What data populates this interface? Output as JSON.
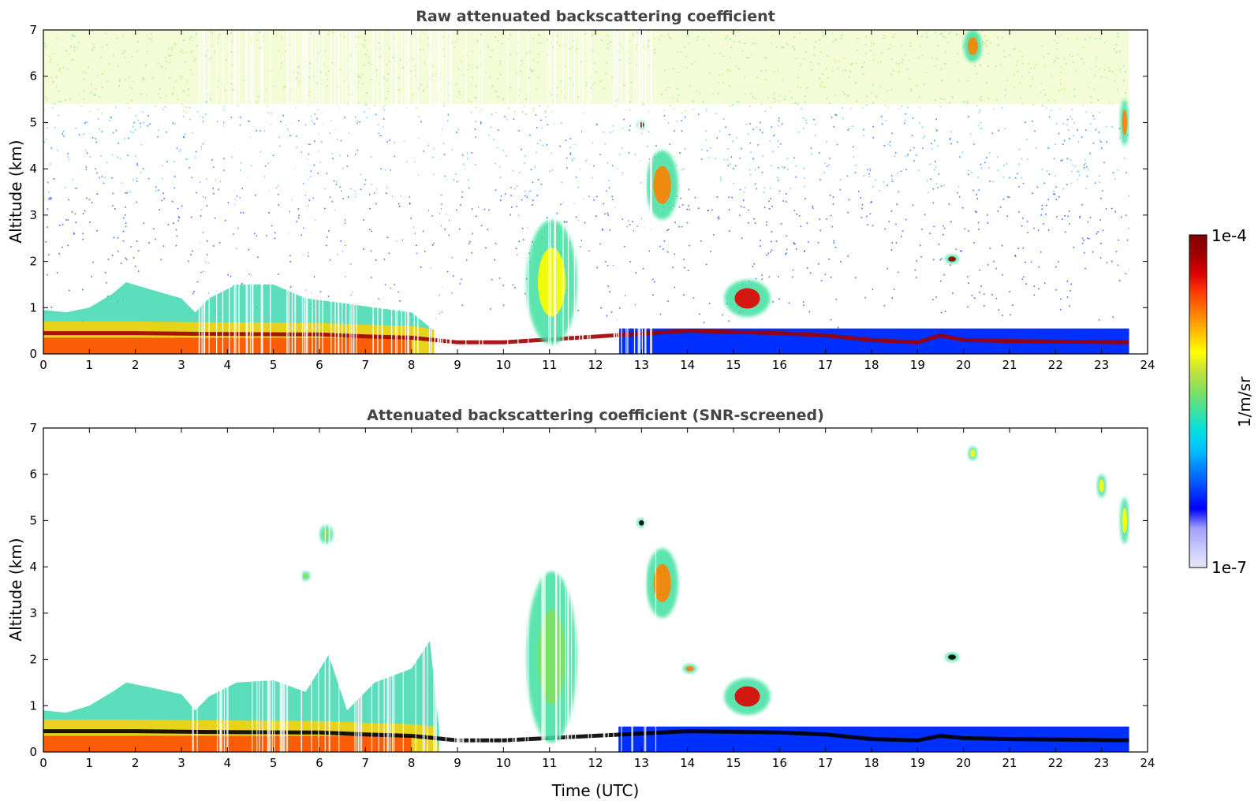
{
  "chart_data": [
    {
      "type": "heatmap",
      "title": "Raw attenuated backscattering coefficient",
      "xlabel": "",
      "ylabel": "Altitude (km)",
      "xlim": [
        0,
        24
      ],
      "ylim": [
        0,
        7
      ],
      "x_ticks": [
        "0",
        "1",
        "2",
        "3",
        "4",
        "5",
        "6",
        "7",
        "8",
        "9",
        "10",
        "11",
        "12",
        "13",
        "14",
        "15",
        "16",
        "17",
        "18",
        "19",
        "20",
        "21",
        "22",
        "23",
        "24"
      ],
      "y_ticks": [
        "0",
        "1",
        "2",
        "3",
        "4",
        "5",
        "6",
        "7"
      ],
      "data_end_hour": 23.6,
      "features": {
        "boundary_layer_top_km": [
          [
            0,
            0.95
          ],
          [
            0.5,
            0.9
          ],
          [
            1,
            1.0
          ],
          [
            1.5,
            1.3
          ],
          [
            1.8,
            1.55
          ],
          [
            2.3,
            1.4
          ],
          [
            3,
            1.2
          ],
          [
            3.3,
            0.9
          ],
          [
            3.6,
            1.2
          ],
          [
            4.2,
            1.5
          ],
          [
            5,
            1.5
          ],
          [
            5.7,
            1.2
          ],
          [
            6.5,
            1.1
          ],
          [
            7.2,
            1.0
          ],
          [
            8,
            0.9
          ],
          [
            8.5,
            0.5
          ]
        ],
        "strong_layer_km": [
          [
            0,
            0.45
          ],
          [
            2,
            0.45
          ],
          [
            4,
            0.43
          ],
          [
            6,
            0.42
          ],
          [
            7,
            0.38
          ],
          [
            8,
            0.35
          ],
          [
            9,
            0.25
          ],
          [
            10,
            0.25
          ],
          [
            14,
            0.5
          ],
          [
            16,
            0.45
          ],
          [
            17,
            0.4
          ],
          [
            18,
            0.3
          ],
          [
            19,
            0.25
          ],
          [
            19.5,
            0.4
          ],
          [
            20,
            0.3
          ],
          [
            21,
            0.28
          ],
          [
            23.6,
            0.25
          ]
        ],
        "clouds": [
          {
            "t0": 13.1,
            "t1": 13.8,
            "z0": 2.9,
            "z1": 4.4,
            "peak": "orange"
          },
          {
            "t0": 12.9,
            "t1": 13.1,
            "z0": 4.85,
            "z1": 5.05,
            "peak": "darkred"
          },
          {
            "t0": 14.8,
            "t1": 15.8,
            "z0": 0.8,
            "z1": 1.6,
            "peak": "red"
          },
          {
            "t0": 19.6,
            "t1": 19.9,
            "z0": 1.95,
            "z1": 2.15,
            "peak": "darkred"
          },
          {
            "t0": 23.4,
            "t1": 23.6,
            "z0": 4.5,
            "z1": 5.5,
            "peak": "orange"
          },
          {
            "t0": 20,
            "t1": 20.4,
            "z0": 6.3,
            "z1": 7,
            "peak": "orange"
          },
          {
            "t0": 10.5,
            "t1": 11.6,
            "z0": 0.2,
            "z1": 2.9,
            "peak": "yellow"
          }
        ]
      }
    },
    {
      "type": "heatmap",
      "title": "Attenuated backscattering coefficient (SNR-screened)",
      "xlabel": "Time (UTC)",
      "ylabel": "Altitude (km)",
      "xlim": [
        0,
        24
      ],
      "ylim": [
        0,
        7
      ],
      "x_ticks": [
        "0",
        "1",
        "2",
        "3",
        "4",
        "5",
        "6",
        "7",
        "8",
        "9",
        "10",
        "11",
        "12",
        "13",
        "14",
        "15",
        "16",
        "17",
        "18",
        "19",
        "20",
        "21",
        "22",
        "23",
        "24"
      ],
      "y_ticks": [
        "0",
        "1",
        "2",
        "3",
        "4",
        "5",
        "6",
        "7"
      ],
      "data_end_hour": 23.6,
      "features": {
        "boundary_layer_top_km": [
          [
            0,
            0.9
          ],
          [
            0.5,
            0.85
          ],
          [
            1,
            1.0
          ],
          [
            1.5,
            1.3
          ],
          [
            1.8,
            1.5
          ],
          [
            2.3,
            1.4
          ],
          [
            3,
            1.25
          ],
          [
            3.3,
            0.9
          ],
          [
            3.6,
            1.2
          ],
          [
            4.2,
            1.5
          ],
          [
            5,
            1.55
          ],
          [
            5.7,
            1.3
          ],
          [
            6.2,
            2.1
          ],
          [
            6.6,
            0.9
          ],
          [
            7.2,
            1.5
          ],
          [
            8,
            1.8
          ],
          [
            8.4,
            2.4
          ],
          [
            8.6,
            0.5
          ]
        ],
        "strong_layer_km": [
          [
            0,
            0.45
          ],
          [
            2,
            0.45
          ],
          [
            4,
            0.43
          ],
          [
            6,
            0.42
          ],
          [
            7,
            0.38
          ],
          [
            8,
            0.35
          ],
          [
            9,
            0.25
          ],
          [
            10,
            0.25
          ],
          [
            14,
            0.45
          ],
          [
            16,
            0.42
          ],
          [
            17,
            0.38
          ],
          [
            18,
            0.28
          ],
          [
            19,
            0.25
          ],
          [
            19.5,
            0.35
          ],
          [
            20,
            0.3
          ],
          [
            21,
            0.28
          ],
          [
            23.6,
            0.25
          ]
        ],
        "clouds": [
          {
            "t0": 13.1,
            "t1": 13.8,
            "z0": 2.9,
            "z1": 4.4,
            "peak": "orange"
          },
          {
            "t0": 12.9,
            "t1": 13.1,
            "z0": 4.85,
            "z1": 5.05,
            "peak": "black"
          },
          {
            "t0": 14.8,
            "t1": 15.8,
            "z0": 0.8,
            "z1": 1.6,
            "peak": "red"
          },
          {
            "t0": 19.6,
            "t1": 19.9,
            "z0": 1.95,
            "z1": 2.15,
            "peak": "black"
          },
          {
            "t0": 23.4,
            "t1": 23.6,
            "z0": 4.5,
            "z1": 5.5,
            "peak": "yellow"
          },
          {
            "t0": 20.1,
            "t1": 20.3,
            "z0": 6.3,
            "z1": 6.6,
            "peak": "yellow"
          },
          {
            "t0": 22.9,
            "t1": 23.1,
            "z0": 5.5,
            "z1": 6.0,
            "peak": "yellow"
          },
          {
            "t0": 10.5,
            "t1": 11.6,
            "z0": 0.2,
            "z1": 3.9,
            "peak": "green"
          },
          {
            "t0": 13.9,
            "t1": 14.2,
            "z0": 1.7,
            "z1": 1.9,
            "peak": "orange"
          },
          {
            "t0": 5.6,
            "t1": 5.8,
            "z0": 3.7,
            "z1": 3.9,
            "peak": "green"
          },
          {
            "t0": 6.0,
            "t1": 6.3,
            "z0": 4.5,
            "z1": 4.9,
            "peak": "green"
          }
        ]
      }
    }
  ],
  "colorbar": {
    "top_label": "1e-4",
    "bottom_label": "1e-7",
    "unit_label": "1/m/sr",
    "colors": [
      "#e6e6f5",
      "#c8c8ff",
      "#a0a0ff",
      "#0000ff",
      "#0040ff",
      "#0080ff",
      "#00c0ff",
      "#00e0e0",
      "#40e0a0",
      "#80e060",
      "#c0e040",
      "#ffff00",
      "#ffc000",
      "#ff8000",
      "#ff4000",
      "#e00000",
      "#a00000",
      "#800000"
    ]
  }
}
